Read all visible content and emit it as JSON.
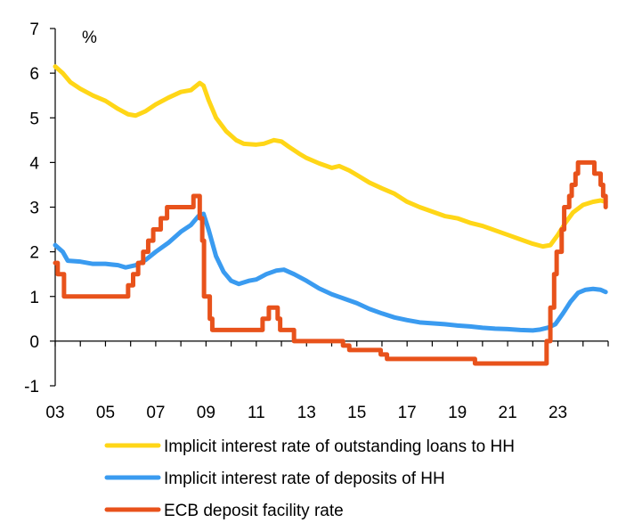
{
  "chart_data": {
    "type": "line",
    "unit_label": "%",
    "xlim": [
      2003,
      2025.0
    ],
    "ylim": [
      -1,
      7
    ],
    "y_ticks": [
      -1,
      0,
      1,
      2,
      3,
      4,
      5,
      6,
      7
    ],
    "y_tick_labels": [
      "-1",
      "0",
      "1",
      "2",
      "3",
      "4",
      "5",
      "6",
      "7"
    ],
    "x_ticks": [
      2003,
      2005,
      2007,
      2009,
      2011,
      2013,
      2015,
      2017,
      2019,
      2021,
      2023
    ],
    "x_tick_labels": [
      "03",
      "05",
      "07",
      "09",
      "11",
      "13",
      "15",
      "17",
      "19",
      "21",
      "23"
    ],
    "grid": false,
    "legend_position": "bottom",
    "series": [
      {
        "name": "Implicit interest rate of outstanding loans to HH",
        "color": "#FFD617",
        "points": [
          [
            2003.0,
            6.15
          ],
          [
            2003.3,
            6.0
          ],
          [
            2003.6,
            5.8
          ],
          [
            2004.0,
            5.65
          ],
          [
            2004.5,
            5.5
          ],
          [
            2005.0,
            5.38
          ],
          [
            2005.5,
            5.2
          ],
          [
            2005.9,
            5.08
          ],
          [
            2006.2,
            5.05
          ],
          [
            2006.6,
            5.15
          ],
          [
            2007.0,
            5.3
          ],
          [
            2007.5,
            5.45
          ],
          [
            2008.0,
            5.58
          ],
          [
            2008.4,
            5.62
          ],
          [
            2008.75,
            5.78
          ],
          [
            2008.9,
            5.72
          ],
          [
            2009.1,
            5.4
          ],
          [
            2009.4,
            5.0
          ],
          [
            2009.8,
            4.7
          ],
          [
            2010.2,
            4.5
          ],
          [
            2010.5,
            4.42
          ],
          [
            2011.0,
            4.4
          ],
          [
            2011.3,
            4.42
          ],
          [
            2011.7,
            4.5
          ],
          [
            2012.0,
            4.47
          ],
          [
            2012.3,
            4.35
          ],
          [
            2012.7,
            4.2
          ],
          [
            2013.0,
            4.1
          ],
          [
            2013.5,
            3.98
          ],
          [
            2014.0,
            3.88
          ],
          [
            2014.3,
            3.92
          ],
          [
            2014.7,
            3.82
          ],
          [
            2015.0,
            3.72
          ],
          [
            2015.5,
            3.55
          ],
          [
            2016.0,
            3.42
          ],
          [
            2016.5,
            3.3
          ],
          [
            2017.0,
            3.12
          ],
          [
            2017.5,
            3.0
          ],
          [
            2018.0,
            2.9
          ],
          [
            2018.5,
            2.8
          ],
          [
            2019.0,
            2.75
          ],
          [
            2019.5,
            2.65
          ],
          [
            2020.0,
            2.58
          ],
          [
            2020.5,
            2.48
          ],
          [
            2021.0,
            2.38
          ],
          [
            2021.5,
            2.28
          ],
          [
            2022.0,
            2.18
          ],
          [
            2022.4,
            2.12
          ],
          [
            2022.7,
            2.15
          ],
          [
            2023.0,
            2.38
          ],
          [
            2023.3,
            2.65
          ],
          [
            2023.6,
            2.88
          ],
          [
            2024.0,
            3.05
          ],
          [
            2024.4,
            3.12
          ],
          [
            2024.7,
            3.15
          ],
          [
            2024.9,
            3.12
          ]
        ]
      },
      {
        "name": "Implicit interest rate of deposits of HH",
        "color": "#3A9BF0",
        "points": [
          [
            2003.0,
            2.15
          ],
          [
            2003.3,
            2.0
          ],
          [
            2003.5,
            1.8
          ],
          [
            2004.0,
            1.78
          ],
          [
            2004.5,
            1.73
          ],
          [
            2005.0,
            1.73
          ],
          [
            2005.5,
            1.7
          ],
          [
            2005.8,
            1.65
          ],
          [
            2006.2,
            1.7
          ],
          [
            2006.6,
            1.82
          ],
          [
            2007.0,
            2.0
          ],
          [
            2007.5,
            2.2
          ],
          [
            2008.0,
            2.45
          ],
          [
            2008.4,
            2.6
          ],
          [
            2008.7,
            2.8
          ],
          [
            2008.9,
            2.85
          ],
          [
            2009.1,
            2.5
          ],
          [
            2009.4,
            1.9
          ],
          [
            2009.7,
            1.55
          ],
          [
            2010.0,
            1.35
          ],
          [
            2010.3,
            1.28
          ],
          [
            2010.7,
            1.35
          ],
          [
            2011.0,
            1.38
          ],
          [
            2011.4,
            1.5
          ],
          [
            2011.8,
            1.58
          ],
          [
            2012.1,
            1.6
          ],
          [
            2012.5,
            1.5
          ],
          [
            2013.0,
            1.35
          ],
          [
            2013.5,
            1.18
          ],
          [
            2014.0,
            1.05
          ],
          [
            2014.5,
            0.95
          ],
          [
            2015.0,
            0.85
          ],
          [
            2015.5,
            0.72
          ],
          [
            2016.0,
            0.62
          ],
          [
            2016.5,
            0.53
          ],
          [
            2017.0,
            0.47
          ],
          [
            2017.5,
            0.42
          ],
          [
            2018.0,
            0.4
          ],
          [
            2018.5,
            0.38
          ],
          [
            2019.0,
            0.35
          ],
          [
            2019.5,
            0.33
          ],
          [
            2020.0,
            0.3
          ],
          [
            2020.5,
            0.28
          ],
          [
            2021.0,
            0.27
          ],
          [
            2021.5,
            0.25
          ],
          [
            2022.0,
            0.24
          ],
          [
            2022.3,
            0.26
          ],
          [
            2022.6,
            0.3
          ],
          [
            2022.9,
            0.38
          ],
          [
            2023.2,
            0.62
          ],
          [
            2023.5,
            0.88
          ],
          [
            2023.8,
            1.08
          ],
          [
            2024.1,
            1.15
          ],
          [
            2024.4,
            1.17
          ],
          [
            2024.7,
            1.15
          ],
          [
            2024.9,
            1.1
          ]
        ]
      },
      {
        "name": "ECB deposit facility rate",
        "color": "#E8521B",
        "points": [
          [
            2003.0,
            1.75
          ],
          [
            2003.1,
            1.75
          ],
          [
            2003.1,
            1.5
          ],
          [
            2003.35,
            1.5
          ],
          [
            2003.35,
            1.0
          ],
          [
            2005.9,
            1.0
          ],
          [
            2005.9,
            1.25
          ],
          [
            2006.1,
            1.25
          ],
          [
            2006.1,
            1.5
          ],
          [
            2006.3,
            1.5
          ],
          [
            2006.3,
            1.75
          ],
          [
            2006.5,
            1.75
          ],
          [
            2006.5,
            2.0
          ],
          [
            2006.7,
            2.0
          ],
          [
            2006.7,
            2.25
          ],
          [
            2006.9,
            2.25
          ],
          [
            2006.9,
            2.5
          ],
          [
            2007.2,
            2.5
          ],
          [
            2007.2,
            2.75
          ],
          [
            2007.45,
            2.75
          ],
          [
            2007.45,
            3.0
          ],
          [
            2008.5,
            3.0
          ],
          [
            2008.5,
            3.25
          ],
          [
            2008.75,
            3.25
          ],
          [
            2008.75,
            2.75
          ],
          [
            2008.85,
            2.75
          ],
          [
            2008.85,
            2.25
          ],
          [
            2008.92,
            2.25
          ],
          [
            2008.92,
            1.0
          ],
          [
            2009.15,
            1.0
          ],
          [
            2009.15,
            0.5
          ],
          [
            2009.25,
            0.5
          ],
          [
            2009.25,
            0.25
          ],
          [
            2011.25,
            0.25
          ],
          [
            2011.25,
            0.5
          ],
          [
            2011.5,
            0.5
          ],
          [
            2011.5,
            0.75
          ],
          [
            2011.85,
            0.75
          ],
          [
            2011.85,
            0.5
          ],
          [
            2011.95,
            0.5
          ],
          [
            2011.95,
            0.25
          ],
          [
            2012.5,
            0.25
          ],
          [
            2012.5,
            0.0
          ],
          [
            2014.45,
            0.0
          ],
          [
            2014.45,
            -0.1
          ],
          [
            2014.7,
            -0.1
          ],
          [
            2014.7,
            -0.2
          ],
          [
            2015.95,
            -0.2
          ],
          [
            2015.95,
            -0.3
          ],
          [
            2016.2,
            -0.3
          ],
          [
            2016.2,
            -0.4
          ],
          [
            2019.7,
            -0.4
          ],
          [
            2019.7,
            -0.5
          ],
          [
            2022.55,
            -0.5
          ],
          [
            2022.55,
            0.0
          ],
          [
            2022.7,
            0.0
          ],
          [
            2022.7,
            0.75
          ],
          [
            2022.85,
            0.75
          ],
          [
            2022.85,
            1.5
          ],
          [
            2022.95,
            1.5
          ],
          [
            2022.95,
            2.0
          ],
          [
            2023.15,
            2.0
          ],
          [
            2023.15,
            2.5
          ],
          [
            2023.25,
            2.5
          ],
          [
            2023.25,
            3.0
          ],
          [
            2023.45,
            3.0
          ],
          [
            2023.45,
            3.25
          ],
          [
            2023.55,
            3.25
          ],
          [
            2023.55,
            3.5
          ],
          [
            2023.7,
            3.5
          ],
          [
            2023.7,
            3.75
          ],
          [
            2023.8,
            3.75
          ],
          [
            2023.8,
            4.0
          ],
          [
            2024.45,
            4.0
          ],
          [
            2024.45,
            3.75
          ],
          [
            2024.7,
            3.75
          ],
          [
            2024.7,
            3.5
          ],
          [
            2024.8,
            3.5
          ],
          [
            2024.8,
            3.25
          ],
          [
            2024.9,
            3.25
          ],
          [
            2024.9,
            3.0
          ]
        ]
      }
    ]
  }
}
